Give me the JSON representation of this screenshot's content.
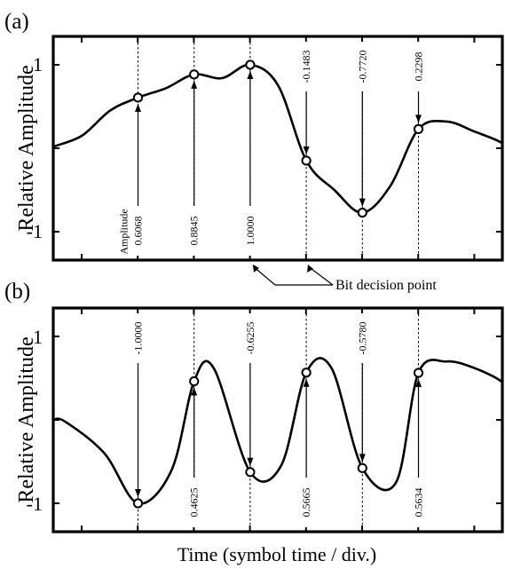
{
  "chart_data": [
    {
      "panel": "(a)",
      "type": "line",
      "ylabel": "Relative Amplitude",
      "yticks": [
        "1",
        "-1"
      ],
      "ylim": [
        -1.35,
        1.2
      ],
      "x": [
        -3.0,
        -2.0,
        -1.5,
        -1.0,
        -0.5,
        0.0,
        0.5,
        1.0,
        1.5,
        2.0,
        2.5,
        3.0,
        3.5,
        4.0,
        4.5,
        5.0,
        5.5,
        6.0,
        6.5,
        7.0,
        7.5
      ],
      "y": [
        0.0,
        0.0,
        0.02,
        0.15,
        0.45,
        0.6068,
        0.72,
        0.8845,
        0.84,
        1.0,
        0.75,
        -0.1483,
        -0.5,
        -0.772,
        -0.45,
        0.2298,
        0.32,
        0.2,
        0.06,
        -0.05,
        -0.1
      ],
      "bit_points": [
        {
          "x": 0,
          "value": "0.6068"
        },
        {
          "x": 1,
          "value": "0.8845"
        },
        {
          "x": 2,
          "value": "1.0000"
        },
        {
          "x": 3,
          "value": "-0.1483"
        },
        {
          "x": 4,
          "value": "-0.7720"
        },
        {
          "x": 5,
          "value": "0.2298"
        }
      ],
      "amplitude_label": "Amplitude"
    },
    {
      "panel": "(b)",
      "type": "line",
      "ylabel": "Relative Amplitude",
      "yticks": [
        "1",
        "-1"
      ],
      "ylim": [
        -1.35,
        1.2
      ],
      "x": [
        -3.0,
        -2.0,
        -1.3,
        -0.6,
        0.0,
        0.6,
        1.0,
        1.35,
        2.0,
        2.55,
        3.0,
        3.45,
        4.0,
        4.6,
        5.0,
        5.5,
        6.0,
        6.5,
        7.0,
        7.5
      ],
      "y": [
        0.0,
        0.0,
        -0.02,
        -0.4,
        -1.0,
        -0.6,
        0.4625,
        0.62,
        -0.6255,
        -0.55,
        0.5665,
        0.62,
        -0.578,
        -0.75,
        0.5634,
        0.7,
        0.62,
        0.45,
        0.3,
        0.18
      ],
      "bit_points": [
        {
          "x": 0,
          "value": "-1.0000"
        },
        {
          "x": 1,
          "value": "0.4625"
        },
        {
          "x": 2,
          "value": "-0.6255"
        },
        {
          "x": 3,
          "value": "0.5665"
        },
        {
          "x": 4,
          "value": "-0.5780"
        },
        {
          "x": 5,
          "value": "0.5634"
        }
      ]
    }
  ],
  "annotation": "Bit decision point",
  "xlabel": "Time (symbol time / div.)"
}
